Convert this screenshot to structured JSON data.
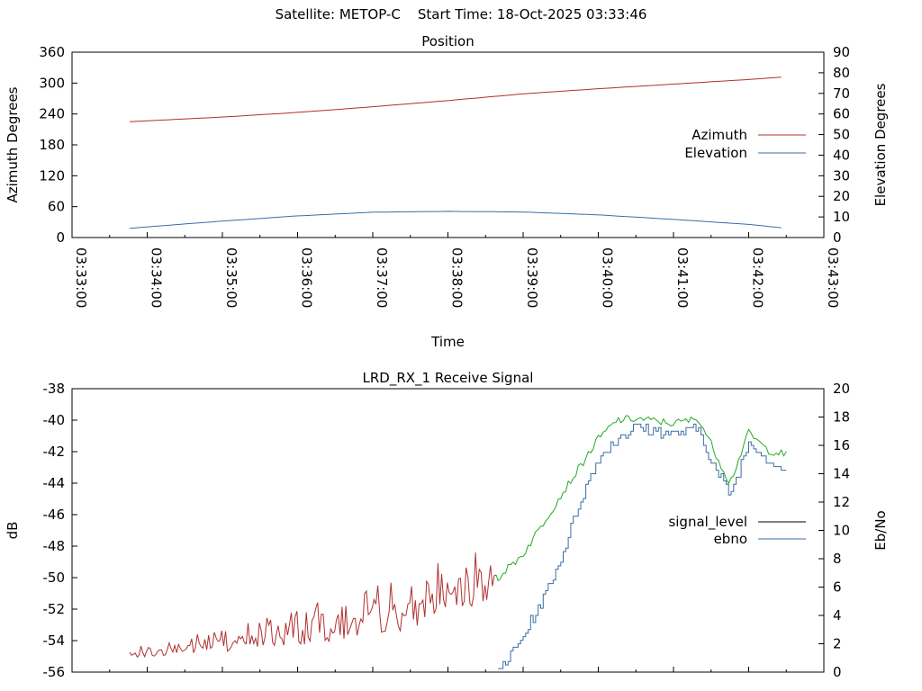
{
  "header": {
    "satellite_label": "Satellite: METOP-C",
    "start_time_label": "Start Time: 18-Oct-2025 03:33:46"
  },
  "chart_data": [
    {
      "id": "position",
      "type": "line",
      "title": "Position",
      "xlabel": "Time",
      "ylabel": "Azimuth Degrees",
      "y2label": "Elevation Degrees",
      "xlim": [
        "03:33:00",
        "03:43:00"
      ],
      "xticks": [
        "03:33:00",
        "03:34:00",
        "03:35:00",
        "03:36:00",
        "03:37:00",
        "03:38:00",
        "03:39:00",
        "03:40:00",
        "03:41:00",
        "03:42:00",
        "03:43:00"
      ],
      "ylim": [
        0,
        360
      ],
      "yticks": [
        0,
        60,
        120,
        180,
        240,
        300,
        360
      ],
      "y2lim": [
        0,
        90
      ],
      "y2ticks": [
        0,
        10,
        20,
        30,
        40,
        50,
        60,
        70,
        80,
        90
      ],
      "legend_position": "right",
      "series": [
        {
          "name": "Azimuth",
          "axis": "y",
          "color": "#b03030",
          "x": [
            "03:33:46",
            "03:35:00",
            "03:36:00",
            "03:37:00",
            "03:38:00",
            "03:39:00",
            "03:40:00",
            "03:41:00",
            "03:42:00",
            "03:42:30"
          ],
          "y": [
            225,
            234,
            243,
            254,
            266,
            279,
            289,
            298,
            307,
            312
          ]
        },
        {
          "name": "Elevation",
          "axis": "y2",
          "color": "#3a6ea5",
          "x": [
            "03:33:46",
            "03:35:00",
            "03:36:00",
            "03:37:00",
            "03:38:00",
            "03:39:00",
            "03:40:00",
            "03:41:00",
            "03:42:00",
            "03:42:30"
          ],
          "y": [
            4.5,
            8,
            10.5,
            12.3,
            12.7,
            12.4,
            11,
            8.8,
            6.4,
            4.5
          ]
        }
      ]
    },
    {
      "id": "receive-signal",
      "type": "line",
      "title": "LRD_RX_1 Receive Signal",
      "ylabel": "dB",
      "y2label": "Eb/No",
      "ylim": [
        -56,
        -38
      ],
      "yticks": [
        -56,
        -54,
        -52,
        -50,
        -48,
        -46,
        -44,
        -42,
        -40,
        -38
      ],
      "y2lim": [
        0,
        20
      ],
      "y2ticks": [
        0,
        2,
        4,
        6,
        8,
        10,
        12,
        14,
        16,
        18,
        20
      ],
      "xlim": [
        "03:33:00",
        "03:43:00"
      ],
      "legend_position": "right",
      "series": [
        {
          "name": "signal_level",
          "axis": "y",
          "legend_color": "#000000",
          "color_segments": [
            {
              "until": "03:38:40",
              "color": "#b03030"
            },
            {
              "until": "03:43:00",
              "color": "#22aa22"
            }
          ],
          "x": [
            "03:33:46",
            "03:34:30",
            "03:35:30",
            "03:36:30",
            "03:37:30",
            "03:38:00",
            "03:38:30",
            "03:38:40",
            "03:39:00",
            "03:39:30",
            "03:40:00",
            "03:40:15",
            "03:40:30",
            "03:41:00",
            "03:41:20",
            "03:41:30",
            "03:41:45",
            "03:42:00",
            "03:42:15",
            "03:42:30"
          ],
          "y": [
            -54.8,
            -54.6,
            -54.2,
            -53.8,
            -53.0,
            -52.0,
            -51.5,
            -50.0,
            -48.5,
            -44.8,
            -41.2,
            -40.0,
            -39.9,
            -40.2,
            -39.9,
            -41.5,
            -44.0,
            -40.8,
            -41.9,
            -42.2
          ]
        },
        {
          "name": "ebno",
          "axis": "y2",
          "color": "#3a6ea5",
          "x": [
            "03:38:40",
            "03:39:00",
            "03:39:15",
            "03:39:30",
            "03:39:45",
            "03:40:00",
            "03:40:15",
            "03:40:30",
            "03:41:00",
            "03:41:20",
            "03:41:30",
            "03:41:45",
            "03:42:00",
            "03:42:15",
            "03:42:30"
          ],
          "y": [
            0,
            2.5,
            5,
            8,
            12,
            15,
            16.5,
            17.3,
            16.8,
            17.2,
            14.8,
            12.5,
            16.3,
            15.0,
            14.2
          ]
        }
      ]
    }
  ]
}
